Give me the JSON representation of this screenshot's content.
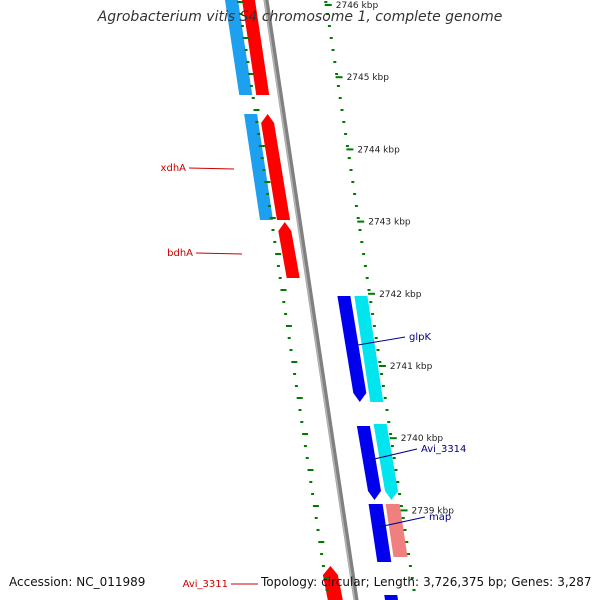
{
  "title": "Agrobacterium vitis S4 chromosome 1, complete genome",
  "footer": {
    "accession_label": "Accession:",
    "accession": "NC_011989",
    "topology_label": "Topology:",
    "topology": "circular;",
    "length_label": "Length:",
    "length": "3,726,375 bp;",
    "genes_label": "Genes:",
    "genes": "3,287"
  },
  "colors": {
    "backbone": "#808080",
    "tick": "#007a00",
    "forward_strand_outer": "#ff0000",
    "forward_strand_inner": "#1ea0f0",
    "reverse_strand_outer": "#0000ee",
    "reverse_strand_inner": "#00e5ee",
    "pink_gene": "#f08080",
    "label_red": "#cc0000",
    "label_blue": "#00008b"
  },
  "scale_ticks": [
    "2746 kbp",
    "2745 kbp",
    "2744 kbp",
    "2743 kbp",
    "2742 kbp",
    "2741 kbp",
    "2740 kbp",
    "2739 kbp"
  ],
  "gene_labels": [
    {
      "text": "xdhA",
      "strand": "forward"
    },
    {
      "text": "bdhA",
      "strand": "forward"
    },
    {
      "text": "glpK",
      "strand": "reverse"
    },
    {
      "text": "Avi_3314",
      "strand": "reverse"
    },
    {
      "text": "map",
      "strand": "reverse"
    },
    {
      "text": "Avi_3311",
      "strand": "forward"
    }
  ]
}
